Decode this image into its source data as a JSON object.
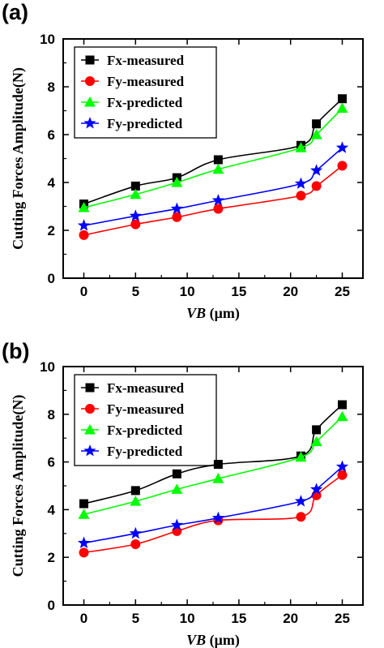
{
  "chart_data": [
    {
      "panel_label": "(a)",
      "type": "line",
      "xlabel_italic": "VB",
      "xlabel_unit": " (μm)",
      "ylabel": "Cutting Forces Amplitude(N)",
      "xlim": [
        -2,
        27
      ],
      "ylim": [
        0,
        10
      ],
      "xticks": [
        0,
        5,
        10,
        15,
        20,
        25
      ],
      "yticks": [
        0,
        2,
        4,
        6,
        8,
        10
      ],
      "legend_position": "top-left",
      "grid": false,
      "series": [
        {
          "name": "Fx-measured",
          "color": "#000000",
          "marker": "square",
          "x": [
            0,
            5,
            9,
            13,
            21,
            22.5,
            25
          ],
          "y": [
            3.1,
            3.85,
            4.2,
            4.95,
            5.55,
            6.45,
            7.5
          ]
        },
        {
          "name": "Fy-measured",
          "color": "#ff0000",
          "marker": "circle",
          "x": [
            0,
            5,
            9,
            13,
            21,
            22.5,
            25
          ],
          "y": [
            1.8,
            2.25,
            2.55,
            2.9,
            3.45,
            3.85,
            4.7
          ]
        },
        {
          "name": "Fx-predicted",
          "color": "#00ff00",
          "marker": "triangle",
          "x": [
            0,
            5,
            9,
            13,
            21,
            22.5,
            25
          ],
          "y": [
            2.95,
            3.5,
            4.0,
            4.55,
            5.45,
            6.0,
            7.1
          ]
        },
        {
          "name": "Fy-predicted",
          "color": "#0000ff",
          "marker": "star",
          "x": [
            0,
            5,
            9,
            13,
            21,
            22.5,
            25
          ],
          "y": [
            2.2,
            2.6,
            2.9,
            3.25,
            3.95,
            4.5,
            5.45
          ]
        }
      ]
    },
    {
      "panel_label": "(b)",
      "type": "line",
      "xlabel_italic": "VB",
      "xlabel_unit": " (μm)",
      "ylabel": "Cutting Forces Amplitude(N)",
      "xlim": [
        -2,
        27
      ],
      "ylim": [
        0,
        10
      ],
      "xticks": [
        0,
        5,
        10,
        15,
        20,
        25
      ],
      "yticks": [
        0,
        2,
        4,
        6,
        8,
        10
      ],
      "legend_position": "top-left",
      "grid": false,
      "series": [
        {
          "name": "Fx-measured",
          "color": "#000000",
          "marker": "square",
          "x": [
            0,
            5,
            9,
            13,
            21,
            22.5,
            25
          ],
          "y": [
            4.25,
            4.8,
            5.5,
            5.9,
            6.25,
            7.35,
            8.4
          ]
        },
        {
          "name": "Fy-measured",
          "color": "#ff0000",
          "marker": "circle",
          "x": [
            0,
            5,
            9,
            13,
            21,
            22.5,
            25
          ],
          "y": [
            2.2,
            2.55,
            3.1,
            3.55,
            3.7,
            4.6,
            5.45
          ]
        },
        {
          "name": "Fx-predicted",
          "color": "#00ff00",
          "marker": "triangle",
          "x": [
            0,
            5,
            9,
            13,
            21,
            22.5,
            25
          ],
          "y": [
            3.8,
            4.35,
            4.85,
            5.3,
            6.2,
            6.85,
            7.9
          ]
        },
        {
          "name": "Fy-predicted",
          "color": "#0000ff",
          "marker": "star",
          "x": [
            0,
            5,
            9,
            13,
            21,
            22.5,
            25
          ],
          "y": [
            2.6,
            3.0,
            3.35,
            3.65,
            4.35,
            4.85,
            5.8
          ]
        }
      ]
    }
  ]
}
